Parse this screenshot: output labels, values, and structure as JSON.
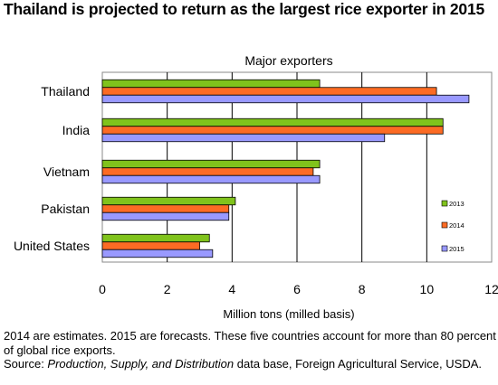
{
  "title": "Thailand is projected to return as the largest rice exporter in 2015",
  "chart_data": {
    "type": "bar",
    "orientation": "horizontal",
    "subtitle": "Major exporters",
    "categories": [
      "Thailand",
      "India",
      "Vietnam",
      "Pakistan",
      "United States"
    ],
    "series": [
      {
        "name": "2013",
        "color": "#80c31c",
        "values": [
          6.7,
          10.5,
          6.7,
          4.1,
          3.3
        ]
      },
      {
        "name": "2014",
        "color": "#fc6b24",
        "values": [
          10.3,
          10.5,
          6.5,
          3.9,
          3.0
        ]
      },
      {
        "name": "2015",
        "color": "#9999ff",
        "values": [
          11.3,
          8.7,
          6.7,
          3.9,
          3.4
        ]
      }
    ],
    "xlabel": "Million tons (milled basis)",
    "xlim": [
      0,
      12
    ],
    "xticks": [
      "0",
      "2",
      "4",
      "6",
      "8",
      "10",
      "12"
    ],
    "grid": true,
    "legend_position": "right"
  },
  "notes": {
    "line1": "2014 are estimates.  2015 are forecasts. These five countries account for more than 80 percent of global rice exports.",
    "source_prefix": "Source: ",
    "source_title": "Production, Supply, and Distribution",
    "source_rest": " data base, Foreign Agricultural Service, USDA."
  }
}
